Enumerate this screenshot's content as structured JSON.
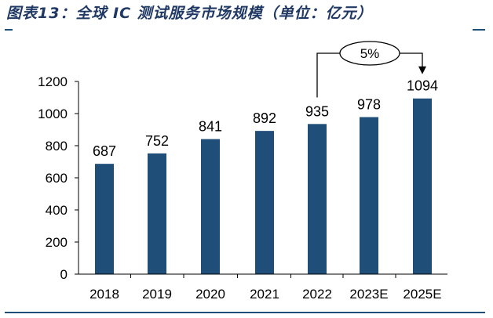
{
  "title": "图表13：全球 IC 测试服务市场规模（单位：亿元）",
  "chart_data": {
    "type": "bar",
    "title": "图表13：全球 IC 测试服务市场规模（单位：亿元）",
    "categories": [
      "2018",
      "2019",
      "2020",
      "2021",
      "2022",
      "2023E",
      "2025E"
    ],
    "values": [
      687,
      752,
      841,
      892,
      935,
      978,
      1094
    ],
    "ylim": [
      0,
      1200
    ],
    "yticks": [
      0,
      200,
      400,
      600,
      800,
      1000,
      1200
    ],
    "grid": false,
    "bar_color": "#1f4e79",
    "annotation": {
      "text": "5%",
      "from_category": "2022",
      "to_category": "2025E"
    }
  }
}
